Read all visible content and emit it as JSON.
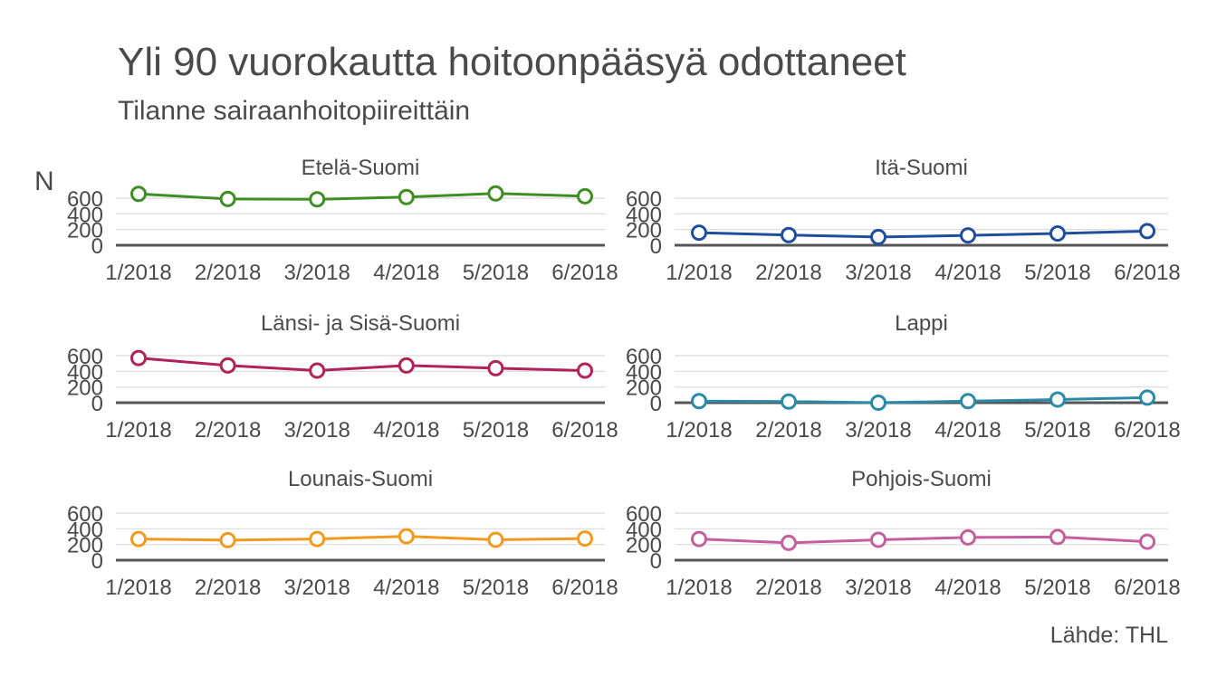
{
  "chart_data": {
    "type": "line",
    "title": "Yli 90 vuorokautta hoitoonpääsyä odottaneet",
    "subtitle": "Tilanne sairaanhoitopiireittäin",
    "ylabel": "N",
    "caption": "Lähde: THL",
    "ylim": [
      0,
      600
    ],
    "yticks": [
      0,
      200,
      400,
      600
    ],
    "categories": [
      "1/2018",
      "2/2018",
      "3/2018",
      "4/2018",
      "5/2018",
      "6/2018"
    ],
    "grid": true,
    "facets": [
      {
        "name": "Etelä-Suomi",
        "color": "#3e8e24",
        "values": [
          655,
          590,
          585,
          615,
          660,
          625
        ]
      },
      {
        "name": "Itä-Suomi",
        "color": "#1f4e9c",
        "values": [
          160,
          130,
          105,
          125,
          150,
          180
        ]
      },
      {
        "name": "Länsi- ja Sisä-Suomi",
        "color": "#b02259",
        "values": [
          570,
          475,
          410,
          475,
          440,
          410
        ]
      },
      {
        "name": "Lappi",
        "color": "#2a8aa8",
        "values": [
          20,
          15,
          0,
          20,
          40,
          65
        ]
      },
      {
        "name": "Lounais-Suomi",
        "color": "#f29a1e",
        "values": [
          270,
          255,
          270,
          305,
          260,
          275
        ]
      },
      {
        "name": "Pohjois-Suomi",
        "color": "#c45f9e",
        "values": [
          270,
          220,
          260,
          290,
          295,
          235
        ]
      }
    ]
  }
}
